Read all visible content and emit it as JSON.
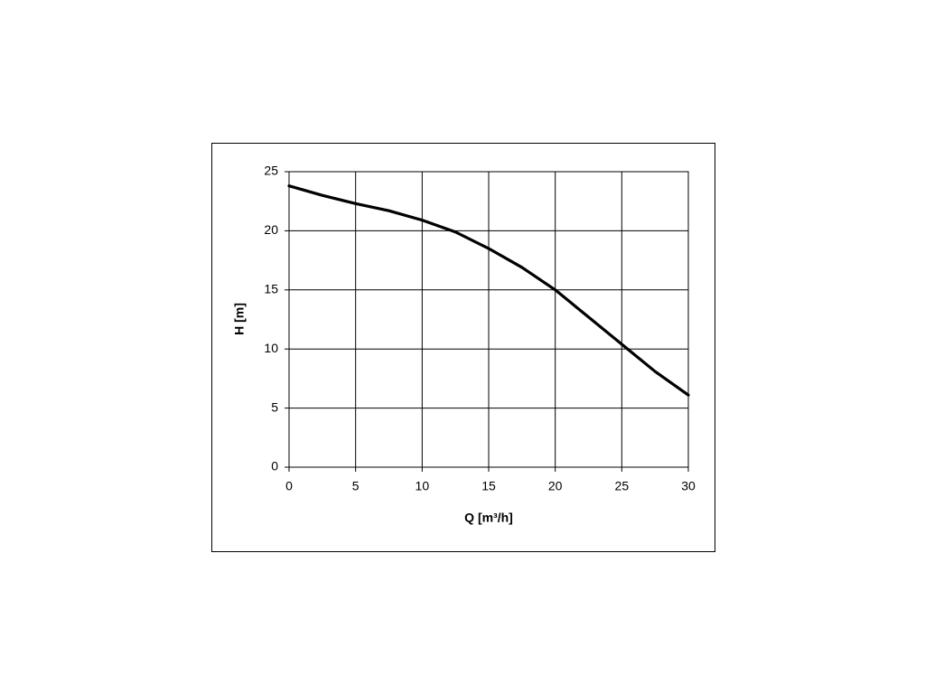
{
  "chart_data": {
    "type": "line",
    "x_label": "Q [m³/h]",
    "y_label": "H [m]",
    "x": [
      0,
      2.5,
      5,
      7.5,
      10,
      12.5,
      15,
      17.5,
      20,
      22.5,
      25,
      27.5,
      30
    ],
    "series": [
      {
        "color": "#000000",
        "values": [
          23.8,
          23.0,
          22.3,
          21.7,
          20.9,
          19.9,
          18.5,
          16.9,
          15.0,
          12.7,
          10.4,
          8.1,
          6.1
        ]
      }
    ],
    "xlim": [
      0,
      30
    ],
    "ylim": [
      0,
      25
    ],
    "xticks": [
      0,
      5,
      10,
      15,
      20,
      25,
      30
    ],
    "yticks": [
      0,
      5,
      10,
      15,
      20,
      25
    ],
    "grid": true
  }
}
